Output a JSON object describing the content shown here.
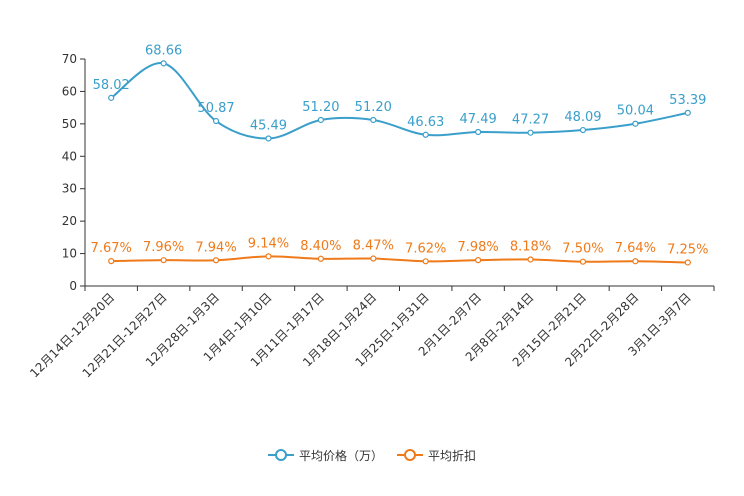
{
  "colors": {
    "price": "#3a9fcb",
    "discount": "#ef7a1a",
    "axis": "#333333"
  },
  "chart_data": {
    "type": "line",
    "categories": [
      "12月14日-12月20日",
      "12月21日-12月27日",
      "12月28日-1月3日",
      "1月4日-1月10日",
      "1月11日-1月17日",
      "1月18日-1月24日",
      "1月25日-1月31日",
      "2月1日-2月7日",
      "2月8日-2月14日",
      "2月15日-2月21日",
      "2月22日-2月28日",
      "3月1日-3月7日"
    ],
    "series": [
      {
        "name": "平均价格（万）",
        "values": [
          58.02,
          68.66,
          50.87,
          45.49,
          51.2,
          51.2,
          46.63,
          47.49,
          47.27,
          48.09,
          50.04,
          53.39
        ],
        "labels": [
          "58.02",
          "68.66",
          "50.87",
          "45.49",
          "51.20",
          "51.20",
          "46.63",
          "47.49",
          "47.27",
          "48.09",
          "50.04",
          "53.39"
        ]
      },
      {
        "name": "平均折扣",
        "values": [
          7.67,
          7.96,
          7.94,
          9.14,
          8.4,
          8.47,
          7.62,
          7.98,
          8.18,
          7.5,
          7.64,
          7.25
        ],
        "labels": [
          "7.67%",
          "7.96%",
          "7.94%",
          "9.14%",
          "8.40%",
          "8.47%",
          "7.62%",
          "7.98%",
          "8.18%",
          "7.50%",
          "7.64%",
          "7.25%"
        ]
      }
    ],
    "yticks": [
      "0",
      "10",
      "20",
      "30",
      "40",
      "50",
      "60",
      "70"
    ],
    "ylim": [
      0,
      70
    ],
    "title": "",
    "xlabel": "",
    "ylabel": "",
    "legend_position": "bottom-center"
  },
  "legend": {
    "items": [
      "平均价格（万）",
      "平均折扣"
    ]
  }
}
